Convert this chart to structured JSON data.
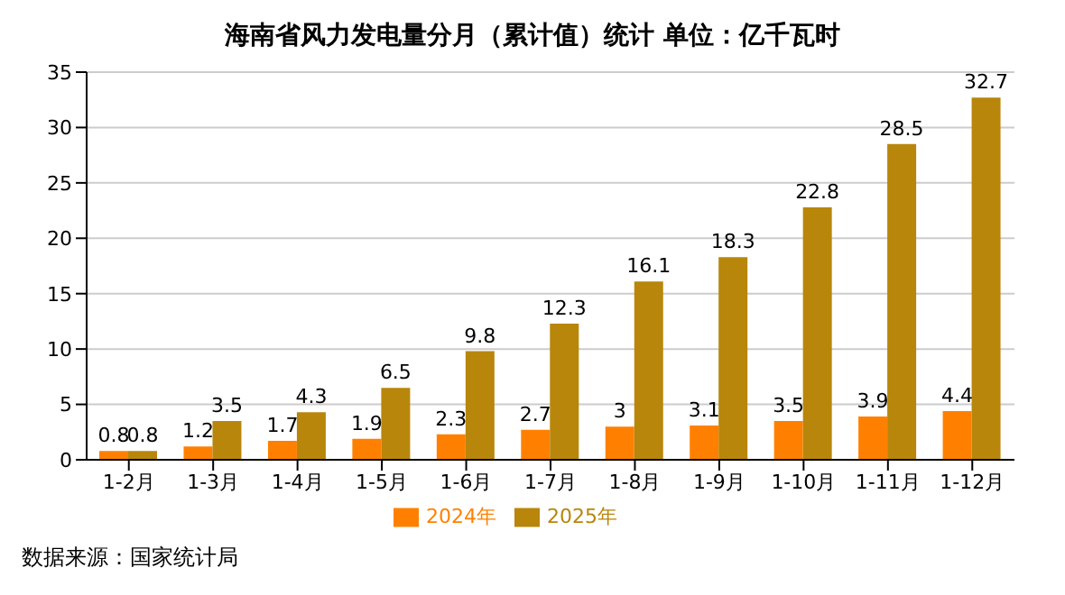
{
  "chart_data": {
    "type": "bar",
    "title": "海南省风力发电量分月（累计值）统计 单位：亿千瓦时",
    "categories": [
      "1-2月",
      "1-3月",
      "1-4月",
      "1-5月",
      "1-6月",
      "1-7月",
      "1-8月",
      "1-9月",
      "1-10月",
      "1-11月",
      "1-12月"
    ],
    "series": [
      {
        "name": "2024年",
        "color": "#ff8000",
        "values": [
          0.8,
          1.2,
          1.7,
          1.9,
          2.3,
          2.7,
          3,
          3.1,
          3.5,
          3.9,
          4.4
        ]
      },
      {
        "name": "2025年",
        "color": "#b8860b",
        "values": [
          0.8,
          3.5,
          4.3,
          6.5,
          9.8,
          12.3,
          16.1,
          18.3,
          22.8,
          28.5,
          32.7
        ]
      }
    ],
    "ylim": [
      0,
      35
    ],
    "yticks": [
      0,
      5,
      10,
      15,
      20,
      25,
      30,
      35
    ],
    "grid": "y",
    "legend": "bottom",
    "data_labels": true,
    "annotations": [
      "数据来源：国家统计局"
    ]
  }
}
